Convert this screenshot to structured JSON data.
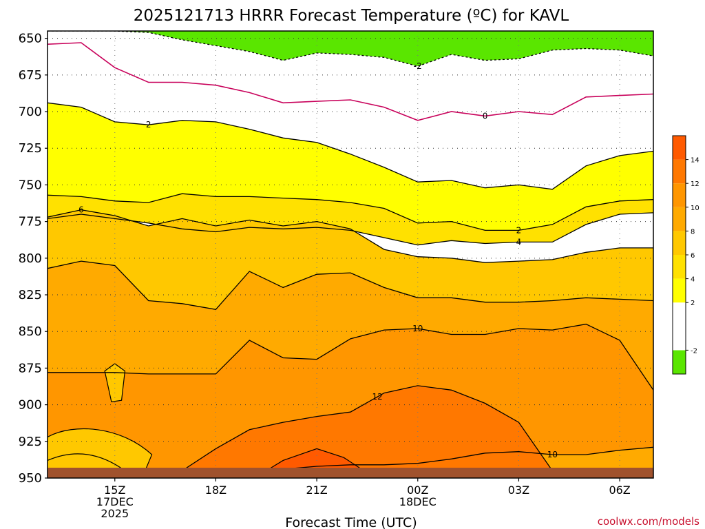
{
  "chart_data": {
    "type": "heatmap",
    "title": "2025121713 HRRR Forecast Temperature (ºC) for KAVL",
    "xlabel": "Forecast Time (UTC)",
    "ylabel": "",
    "credit": "coolwx.com/models",
    "y_ticks": [
      650,
      675,
      700,
      725,
      750,
      775,
      800,
      825,
      850,
      875,
      900,
      925,
      950
    ],
    "y_range": [
      645,
      950
    ],
    "x_range_hours": [
      13,
      31
    ],
    "x_ticks": [
      {
        "hour": 15,
        "lines": [
          "15Z",
          "17DEC",
          "2025"
        ]
      },
      {
        "hour": 18,
        "lines": [
          "18Z"
        ]
      },
      {
        "hour": 21,
        "lines": [
          "21Z"
        ]
      },
      {
        "hour": 24,
        "lines": [
          "00Z",
          "18DEC"
        ]
      },
      {
        "hour": 27,
        "lines": [
          "03Z"
        ]
      },
      {
        "hour": 30,
        "lines": [
          "06Z"
        ]
      }
    ],
    "hours": [
      13,
      14,
      15,
      16,
      17,
      18,
      19,
      20,
      21,
      22,
      23,
      24,
      25,
      26,
      27,
      28,
      29,
      30,
      31
    ],
    "isotherms": [
      {
        "level": -2,
        "label": "-2",
        "label_hour": 24,
        "pressure": [
          645,
          645,
          645,
          646,
          651,
          655,
          659,
          665,
          660,
          661,
          663,
          669,
          661,
          665,
          664,
          658,
          657,
          658,
          662
        ]
      },
      {
        "level": 0,
        "label": "0",
        "label_hour": 26,
        "pressure": [
          654,
          653,
          670,
          680,
          680,
          682,
          687,
          694,
          693,
          692,
          697,
          706,
          700,
          703,
          700,
          702,
          690,
          689,
          688
        ]
      },
      {
        "level": 2,
        "label": "2",
        "label_hour": 16,
        "pressure": [
          694,
          697,
          707,
          709,
          706,
          707,
          712,
          718,
          721,
          729,
          738,
          748,
          747,
          752,
          750,
          753,
          737,
          730,
          727
        ]
      },
      {
        "level": 2,
        "label": "2",
        "label_hour": 27,
        "pressure": [
          757,
          758,
          761,
          762,
          756,
          758,
          758,
          759,
          760,
          762,
          766,
          776,
          775,
          781,
          781,
          777,
          765,
          761,
          760
        ]
      },
      {
        "level": 4,
        "label": "4",
        "label_hour": 27,
        "pressure": [
          773,
          770,
          773,
          776,
          780,
          782,
          779,
          780,
          779,
          781,
          786,
          791,
          788,
          790,
          789,
          789,
          777,
          770,
          769
        ]
      },
      {
        "level": 6,
        "label": "6",
        "label_hour": 14,
        "pressure": [
          772,
          767,
          771,
          778,
          773,
          778,
          774,
          778,
          775,
          780,
          794,
          799,
          800,
          803,
          802,
          801,
          796,
          793,
          793
        ]
      },
      {
        "level": 8,
        "label": "",
        "label_hour": 0,
        "pressure": [
          807,
          802,
          805,
          829,
          831,
          835,
          809,
          820,
          811,
          810,
          820,
          827,
          827,
          830,
          830,
          829,
          827,
          828,
          829
        ]
      },
      {
        "level": 10,
        "label": "10",
        "label_hour": 24,
        "pressure": [
          878,
          878,
          878,
          879,
          879,
          879,
          856,
          868,
          869,
          855,
          849,
          848,
          852,
          852,
          848,
          849,
          845,
          856,
          890
        ]
      },
      {
        "level": 10,
        "label": "10",
        "label_hour": 28,
        "pressure": [
          945,
          945,
          945,
          945,
          945,
          945,
          945,
          944,
          942,
          941,
          941,
          940,
          937,
          933,
          932,
          934,
          934,
          931,
          929
        ]
      },
      {
        "level": 12,
        "label": "12",
        "label_hour": 22.8,
        "pressure": [
          945,
          945,
          945,
          945,
          945,
          930,
          917,
          912,
          908,
          905,
          892,
          887,
          890,
          899,
          912,
          945,
          945,
          945,
          945
        ]
      }
    ],
    "colorbar": {
      "ticks": [
        -2,
        2,
        4,
        6,
        8,
        10,
        12,
        14
      ],
      "bins": [
        {
          "from": -4,
          "to": -2,
          "color": "#5ae600"
        },
        {
          "from": -2,
          "to": 2,
          "color": "#ffffff"
        },
        {
          "from": 2,
          "to": 4,
          "color": "#ffff00"
        },
        {
          "from": 4,
          "to": 6,
          "color": "#ffe100"
        },
        {
          "from": 6,
          "to": 8,
          "color": "#ffc800"
        },
        {
          "from": 8,
          "to": 10,
          "color": "#ffaa00"
        },
        {
          "from": 10,
          "to": 12,
          "color": "#ff9600"
        },
        {
          "from": 12,
          "to": 14,
          "color": "#ff7800"
        },
        {
          "from": 14,
          "to": 16,
          "color": "#ff5a00"
        }
      ]
    },
    "ground_color": "#a0522d",
    "fill_colors": {
      "below_neg2": "#5ae600",
      "neg2_to_2": "#ffffff",
      "2_to_4": "#ffff00",
      "4_to_6": "#ffe100",
      "6_to_8": "#ffc800",
      "8_to_10": "#ffaa00",
      "10_to_12": "#ff9600",
      "12_to_14": "#ff7800",
      "14_plus": "#ff5a00",
      "zero_line": "#c8005a"
    }
  }
}
